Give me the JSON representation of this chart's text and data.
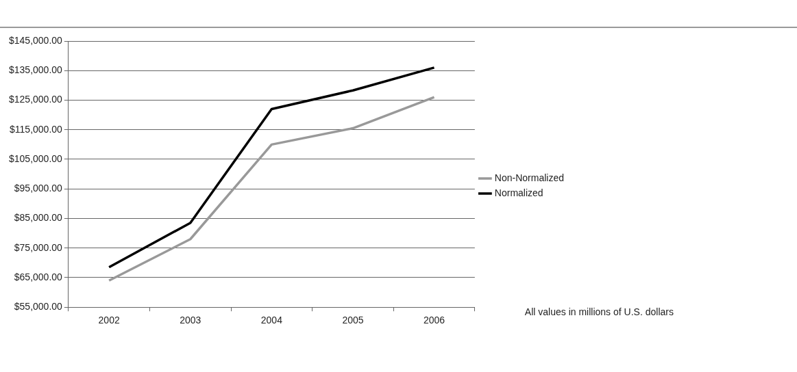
{
  "chart_data": {
    "type": "line",
    "categories": [
      "2002",
      "2003",
      "2004",
      "2005",
      "2006"
    ],
    "series": [
      {
        "name": "Non-Normalized",
        "color": "#999999",
        "values": [
          64000,
          78000,
          110000,
          115500,
          126000
        ]
      },
      {
        "name": "Normalized",
        "color": "#000000",
        "values": [
          68500,
          83500,
          122000,
          128300,
          136000
        ]
      }
    ],
    "ylim": [
      55000,
      145000
    ],
    "yticks": [
      {
        "value": 55000,
        "label": "$55,000.00"
      },
      {
        "value": 65000,
        "label": "$65,000.00"
      },
      {
        "value": 75000,
        "label": "$75,000.00"
      },
      {
        "value": 85000,
        "label": "$85,000.00"
      },
      {
        "value": 95000,
        "label": "$95,000.00"
      },
      {
        "value": 105000,
        "label": "$105,000.00"
      },
      {
        "value": 115000,
        "label": "$115,000.00"
      },
      {
        "value": 125000,
        "label": "$125,000.00"
      },
      {
        "value": 135000,
        "label": "$135,000.00"
      },
      {
        "value": 145000,
        "label": "$145,000.00"
      }
    ],
    "grid": "y",
    "legend": "right",
    "marker": "none",
    "line_style": "solid",
    "annotations": [
      "All values in millions of U.S. dollars"
    ]
  }
}
